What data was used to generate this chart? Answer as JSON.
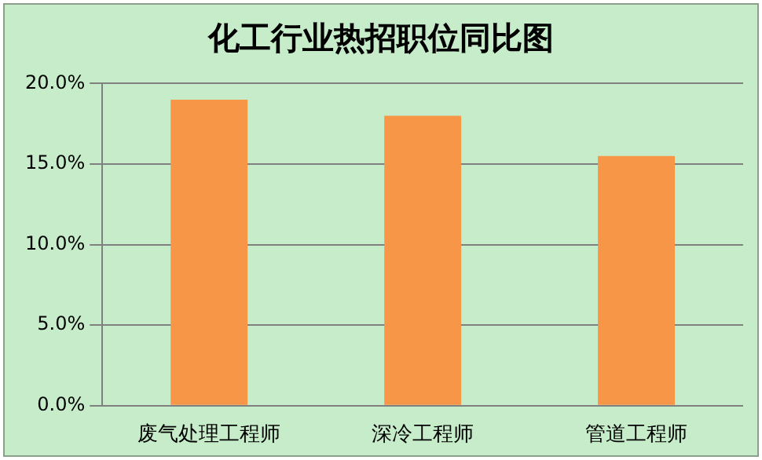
{
  "chart_data": {
    "type": "bar",
    "title": "化工行业热招职位同比图",
    "categories": [
      "废气处理工程师",
      "深冷工程师",
      "管道工程师"
    ],
    "values": [
      19,
      18,
      15.5
    ],
    "color": "#f79646",
    "ylim": [
      0,
      20
    ],
    "yticks": [
      {
        "value": 0,
        "label": "0.0%"
      },
      {
        "value": 5,
        "label": "5.0%"
      },
      {
        "value": 10,
        "label": "10.0%"
      },
      {
        "value": 15,
        "label": "15.0%"
      },
      {
        "value": 20,
        "label": "20.0%"
      }
    ],
    "grid": "y",
    "legend": false
  }
}
